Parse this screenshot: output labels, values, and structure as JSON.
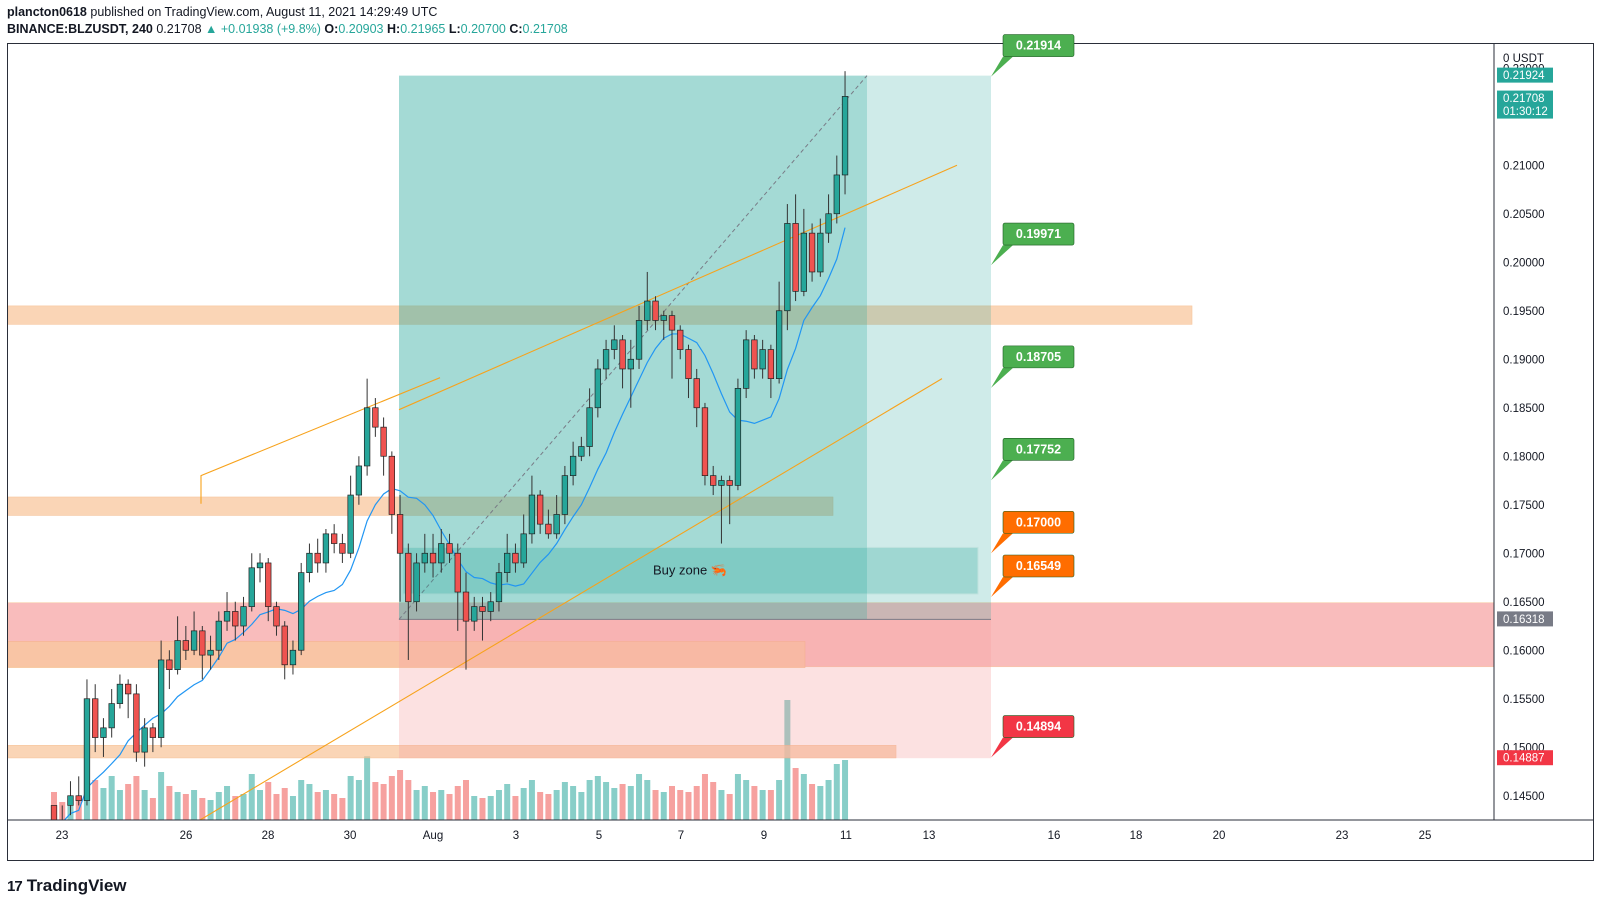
{
  "header": {
    "author": "plancton0618",
    "published_text": "published on TradingView.com, August 11, 2021 14:29:49 UTC",
    "symbol": "BINANCE:BLZUSDT, 240",
    "last": "0.21708",
    "change": "▲ +0.01938 (+9.8%)",
    "o_label": "O:",
    "o_value": "0.20903",
    "h_label": "H:",
    "h_value": "0.21965",
    "l_label": "L:",
    "l_value": "0.20700",
    "c_label": "C:",
    "c_value": "0.21708"
  },
  "footer": {
    "logo_text": "TradingView",
    "logo_mark": "17"
  },
  "colors": {
    "up": "#26a69a",
    "down": "#ef5350",
    "ma": "#2196f3",
    "channel": "#f7a21b",
    "zone_orange": "#f9c89e",
    "zone_red": "#f7a1a1",
    "target_green": "#4caf50",
    "target_orange": "#ff6d00",
    "target_red": "#f23645"
  },
  "chart_data": {
    "type": "candlestick",
    "interval": "240",
    "y_unit": "USDT",
    "ylim": [
      0.1425,
      0.2225
    ],
    "x_ticks": [
      "23",
      "26",
      "28",
      "30",
      "Aug",
      "3",
      "5",
      "7",
      "9",
      "11",
      "13",
      "16",
      "18",
      "20",
      "23",
      "25"
    ],
    "y_ticks": [
      "0.22000",
      "0.21000",
      "0.20500",
      "0.20000",
      "0.19500",
      "0.19000",
      "0.18500",
      "0.18000",
      "0.17500",
      "0.17000",
      "0.16500",
      "0.16000",
      "0.15500",
      "0.15000",
      "0.14500"
    ],
    "price_labels": [
      {
        "text": "0.21924",
        "value": 0.21924,
        "kind": "teal"
      },
      {
        "text": "0.21708",
        "sub": "01:30:12",
        "value": 0.21708,
        "kind": "teal"
      },
      {
        "text": "0.16318",
        "value": 0.16318,
        "kind": "gray"
      },
      {
        "text": "0.14887",
        "value": 0.14887,
        "kind": "red"
      }
    ],
    "targets": [
      {
        "text": "0.21914",
        "value": 0.21914,
        "kind": "green"
      },
      {
        "text": "0.19971",
        "value": 0.19971,
        "kind": "green"
      },
      {
        "text": "0.18705",
        "value": 0.18705,
        "kind": "green"
      },
      {
        "text": "0.17752",
        "value": 0.17752,
        "kind": "green"
      },
      {
        "text": "0.17000",
        "value": 0.17,
        "kind": "orange"
      },
      {
        "text": "0.16549",
        "value": 0.16549,
        "kind": "orange"
      },
      {
        "text": "0.14894",
        "value": 0.14894,
        "kind": "red"
      }
    ],
    "buy_zone": {
      "label": "Buy zone 🦐",
      "low": 0.1658,
      "high": 0.1706
    },
    "zones": [
      {
        "low": 0.1936,
        "high": 0.1955,
        "kind": "orange"
      },
      {
        "low": 0.1739,
        "high": 0.1758,
        "kind": "orange"
      },
      {
        "low": 0.1583,
        "high": 0.1649,
        "kind": "red"
      },
      {
        "low": 0.1582,
        "high": 0.1609,
        "kind": "orange"
      },
      {
        "low": 0.1489,
        "high": 0.1502,
        "kind": "orange"
      }
    ],
    "position": {
      "entry": 0.16318,
      "target": 0.21924,
      "stop": 0.14887
    },
    "candles": [
      [
        0.144,
        0.1425,
        0.144,
        0.1425
      ],
      [
        0.1425,
        0.142,
        0.1425,
        0.144
      ],
      [
        0.144,
        0.145,
        0.1465,
        0.143
      ],
      [
        0.145,
        0.1445,
        0.147,
        0.144
      ],
      [
        0.1445,
        0.155,
        0.157,
        0.144
      ],
      [
        0.155,
        0.151,
        0.1565,
        0.1495
      ],
      [
        0.151,
        0.152,
        0.153,
        0.149
      ],
      [
        0.152,
        0.1545,
        0.156,
        0.151
      ],
      [
        0.1545,
        0.1565,
        0.1575,
        0.154
      ],
      [
        0.1565,
        0.1555,
        0.157,
        0.153
      ],
      [
        0.1555,
        0.1495,
        0.1565,
        0.1485
      ],
      [
        0.1495,
        0.152,
        0.153,
        0.148
      ],
      [
        0.152,
        0.151,
        0.1525,
        0.1495
      ],
      [
        0.151,
        0.159,
        0.161,
        0.15
      ],
      [
        0.159,
        0.158,
        0.16,
        0.156
      ],
      [
        0.158,
        0.161,
        0.1635,
        0.1575
      ],
      [
        0.161,
        0.16,
        0.1625,
        0.159
      ],
      [
        0.16,
        0.162,
        0.164,
        0.1595
      ],
      [
        0.162,
        0.1595,
        0.1625,
        0.157
      ],
      [
        0.1595,
        0.16,
        0.1615,
        0.158
      ],
      [
        0.16,
        0.163,
        0.164,
        0.159
      ],
      [
        0.163,
        0.164,
        0.166,
        0.162
      ],
      [
        0.164,
        0.1625,
        0.165,
        0.161
      ],
      [
        0.1625,
        0.1645,
        0.1655,
        0.1615
      ],
      [
        0.1645,
        0.1685,
        0.17,
        0.164
      ],
      [
        0.1685,
        0.169,
        0.17,
        0.167
      ],
      [
        0.169,
        0.1645,
        0.1695,
        0.163
      ],
      [
        0.1645,
        0.1625,
        0.165,
        0.1615
      ],
      [
        0.1625,
        0.1585,
        0.163,
        0.157
      ],
      [
        0.1585,
        0.16,
        0.161,
        0.1575
      ],
      [
        0.16,
        0.168,
        0.169,
        0.1595
      ],
      [
        0.168,
        0.17,
        0.171,
        0.167
      ],
      [
        0.17,
        0.169,
        0.1715,
        0.168
      ],
      [
        0.169,
        0.172,
        0.1725,
        0.168
      ],
      [
        0.172,
        0.171,
        0.173,
        0.17
      ],
      [
        0.171,
        0.17,
        0.172,
        0.169
      ],
      [
        0.17,
        0.176,
        0.178,
        0.1695
      ],
      [
        0.176,
        0.179,
        0.18,
        0.175
      ],
      [
        0.179,
        0.185,
        0.188,
        0.178
      ],
      [
        0.185,
        0.183,
        0.186,
        0.182
      ],
      [
        0.183,
        0.18,
        0.184,
        0.178
      ],
      [
        0.18,
        0.174,
        0.1805,
        0.172
      ],
      [
        0.174,
        0.17,
        0.176,
        0.165
      ],
      [
        0.17,
        0.165,
        0.171,
        0.159
      ],
      [
        0.165,
        0.169,
        0.17,
        0.164
      ],
      [
        0.169,
        0.17,
        0.172,
        0.168
      ],
      [
        0.17,
        0.169,
        0.172,
        0.1675
      ],
      [
        0.169,
        0.171,
        0.1725,
        0.168
      ],
      [
        0.171,
        0.17,
        0.172,
        0.169
      ],
      [
        0.17,
        0.166,
        0.171,
        0.162
      ],
      [
        0.166,
        0.163,
        0.168,
        0.158
      ],
      [
        0.163,
        0.1645,
        0.1655,
        0.162
      ],
      [
        0.1645,
        0.164,
        0.1655,
        0.161
      ],
      [
        0.164,
        0.165,
        0.166,
        0.163
      ],
      [
        0.165,
        0.168,
        0.169,
        0.164
      ],
      [
        0.168,
        0.17,
        0.172,
        0.167
      ],
      [
        0.17,
        0.169,
        0.171,
        0.168
      ],
      [
        0.169,
        0.172,
        0.174,
        0.1685
      ],
      [
        0.172,
        0.176,
        0.178,
        0.171
      ],
      [
        0.176,
        0.173,
        0.1765,
        0.172
      ],
      [
        0.173,
        0.172,
        0.1745,
        0.1715
      ],
      [
        0.172,
        0.174,
        0.176,
        0.1715
      ],
      [
        0.174,
        0.178,
        0.179,
        0.173
      ],
      [
        0.178,
        0.18,
        0.1815,
        0.177
      ],
      [
        0.18,
        0.181,
        0.182,
        0.1795
      ],
      [
        0.181,
        0.185,
        0.187,
        0.18
      ],
      [
        0.185,
        0.189,
        0.19,
        0.184
      ],
      [
        0.189,
        0.191,
        0.192,
        0.188
      ],
      [
        0.191,
        0.192,
        0.1935,
        0.19
      ],
      [
        0.192,
        0.189,
        0.1925,
        0.187
      ],
      [
        0.189,
        0.19,
        0.192,
        0.185
      ],
      [
        0.19,
        0.194,
        0.1955,
        0.189
      ],
      [
        0.194,
        0.196,
        0.199,
        0.193
      ],
      [
        0.196,
        0.194,
        0.1965,
        0.193
      ],
      [
        0.194,
        0.1945,
        0.195,
        0.192
      ],
      [
        0.1945,
        0.193,
        0.195,
        0.188
      ],
      [
        0.193,
        0.191,
        0.1935,
        0.19
      ],
      [
        0.191,
        0.188,
        0.1915,
        0.186
      ],
      [
        0.188,
        0.185,
        0.189,
        0.183
      ],
      [
        0.185,
        0.178,
        0.1855,
        0.177
      ],
      [
        0.178,
        0.177,
        0.179,
        0.176
      ],
      [
        0.177,
        0.1775,
        0.178,
        0.171
      ],
      [
        0.1775,
        0.177,
        0.178,
        0.173
      ],
      [
        0.177,
        0.187,
        0.188,
        0.1765
      ],
      [
        0.187,
        0.192,
        0.193,
        0.186
      ],
      [
        0.192,
        0.189,
        0.1925,
        0.188
      ],
      [
        0.189,
        0.191,
        0.192,
        0.188
      ],
      [
        0.191,
        0.188,
        0.1915,
        0.186
      ],
      [
        0.188,
        0.195,
        0.198,
        0.1875
      ],
      [
        0.195,
        0.204,
        0.206,
        0.193
      ],
      [
        0.204,
        0.197,
        0.207,
        0.196
      ],
      [
        0.197,
        0.203,
        0.2055,
        0.1965
      ],
      [
        0.203,
        0.199,
        0.204,
        0.198
      ],
      [
        0.199,
        0.203,
        0.2045,
        0.1985
      ],
      [
        0.203,
        0.205,
        0.207,
        0.202
      ],
      [
        0.205,
        0.209,
        0.211,
        0.204
      ],
      [
        0.209,
        0.2171,
        0.2197,
        0.207
      ]
    ]
  }
}
